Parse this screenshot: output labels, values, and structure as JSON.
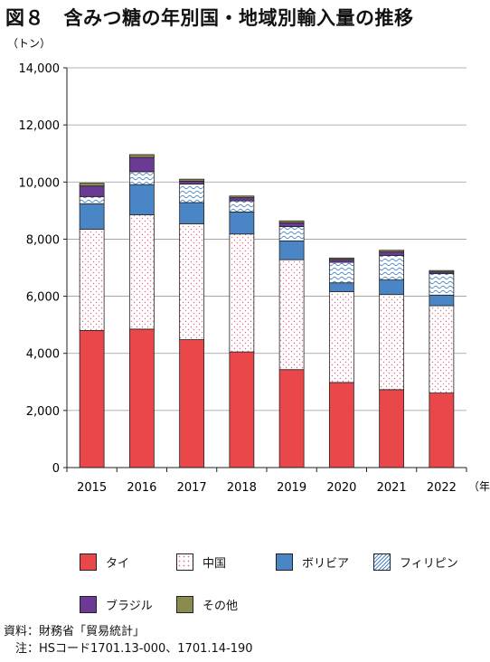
{
  "header": {
    "title": "図８　含みつ糖の年別国・地域別輸入量の推移"
  },
  "chart_data": {
    "type": "bar",
    "stacked": true,
    "title": "",
    "ylabel": "（トン）",
    "xlabel": "（年）",
    "ylim": [
      0,
      14000
    ],
    "yticks": [
      0,
      2000,
      4000,
      6000,
      8000,
      10000,
      12000,
      14000
    ],
    "ytick_labels": [
      "0",
      "2,000",
      "4,000",
      "6,000",
      "8,000",
      "10,000",
      "12,000",
      "14,000"
    ],
    "grid": true,
    "legend_position": "bottom",
    "categories": [
      "2015",
      "2016",
      "2017",
      "2018",
      "2019",
      "2020",
      "2021",
      "2022"
    ],
    "series": [
      {
        "name": "タイ",
        "color": "#e9474a",
        "pattern": "solid",
        "values": [
          4800,
          4850,
          4480,
          4050,
          3430,
          2980,
          2730,
          2610
        ]
      },
      {
        "name": "中国",
        "color": "#ffffff",
        "pattern": "dots",
        "values": [
          3550,
          4000,
          4060,
          4130,
          3850,
          3180,
          3330,
          3060
        ]
      },
      {
        "name": "ボリビア",
        "color": "#4a86c6",
        "pattern": "solid",
        "values": [
          890,
          1060,
          740,
          770,
          660,
          310,
          510,
          370
        ]
      },
      {
        "name": "フィリピン",
        "color": "#ffffff",
        "pattern": "waves",
        "values": [
          250,
          450,
          650,
          390,
          500,
          720,
          860,
          750
        ]
      },
      {
        "name": "ブラジル",
        "color": "#6b3a94",
        "pattern": "solid",
        "values": [
          370,
          500,
          100,
          110,
          130,
          100,
          120,
          60
        ]
      },
      {
        "name": "その他",
        "color": "#8b8b50",
        "pattern": "solid",
        "values": [
          100,
          100,
          70,
          60,
          70,
          50,
          60,
          50
        ]
      }
    ]
  },
  "notes": {
    "source": "資料：財務省「貿易統計」",
    "note": "　注：HSコード1701.13-000、1701.14-190"
  }
}
